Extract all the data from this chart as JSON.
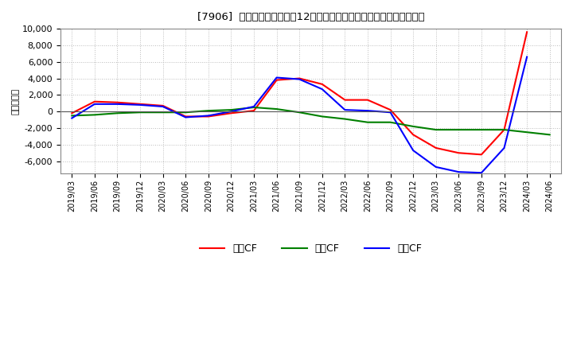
{
  "title": "[7906]  キャッシュフローの12か月移動合計の対前年同期増減額の推移",
  "ylabel": "（百万円）",
  "background_color": "#ffffff",
  "plot_bg_color": "#ffffff",
  "grid_color": "#bbbbbb",
  "ylim": [
    -7500,
    10000
  ],
  "yticks": [
    -6000,
    -4000,
    -2000,
    0,
    2000,
    4000,
    6000,
    8000,
    10000
  ],
  "x_labels": [
    "2019/03",
    "2019/06",
    "2019/09",
    "2019/12",
    "2020/03",
    "2020/06",
    "2020/09",
    "2020/12",
    "2021/03",
    "2021/06",
    "2021/09",
    "2021/12",
    "2022/03",
    "2022/06",
    "2022/09",
    "2022/12",
    "2023/03",
    "2023/06",
    "2023/09",
    "2023/12",
    "2024/03",
    "2024/06"
  ],
  "series": {
    "営業CF": {
      "color": "#ff0000",
      "values": [
        -200,
        1200,
        1100,
        900,
        700,
        -600,
        -600,
        -200,
        100,
        3800,
        4000,
        3300,
        1400,
        1400,
        200,
        -2800,
        -4400,
        -5000,
        -5200,
        -2200,
        9600,
        null
      ]
    },
    "投賃CF": {
      "color": "#008000",
      "values": [
        -500,
        -400,
        -200,
        -100,
        -100,
        -100,
        100,
        200,
        500,
        300,
        -100,
        -600,
        -900,
        -1300,
        -1300,
        -1800,
        -2200,
        -2200,
        -2200,
        -2200,
        -2500,
        -2800
      ]
    },
    "フリCF": {
      "color": "#0000ff",
      "values": [
        -800,
        900,
        900,
        800,
        600,
        -700,
        -500,
        0,
        600,
        4100,
        3900,
        2700,
        200,
        100,
        -100,
        -4700,
        -6700,
        -7300,
        -7400,
        -4400,
        6600,
        null
      ]
    }
  },
  "legend_labels": [
    "営業CF",
    "投賃CF",
    "フリCF"
  ],
  "legend_display": [
    "営業CF",
    "投賃CF",
    "フリCF"
  ],
  "legend_colors": [
    "#ff0000",
    "#008000",
    "#0000ff"
  ],
  "title_prefix": "[7906]",
  "title_main": "キャッシュフローの12か月移動合計の対前年同期増減額の推移"
}
